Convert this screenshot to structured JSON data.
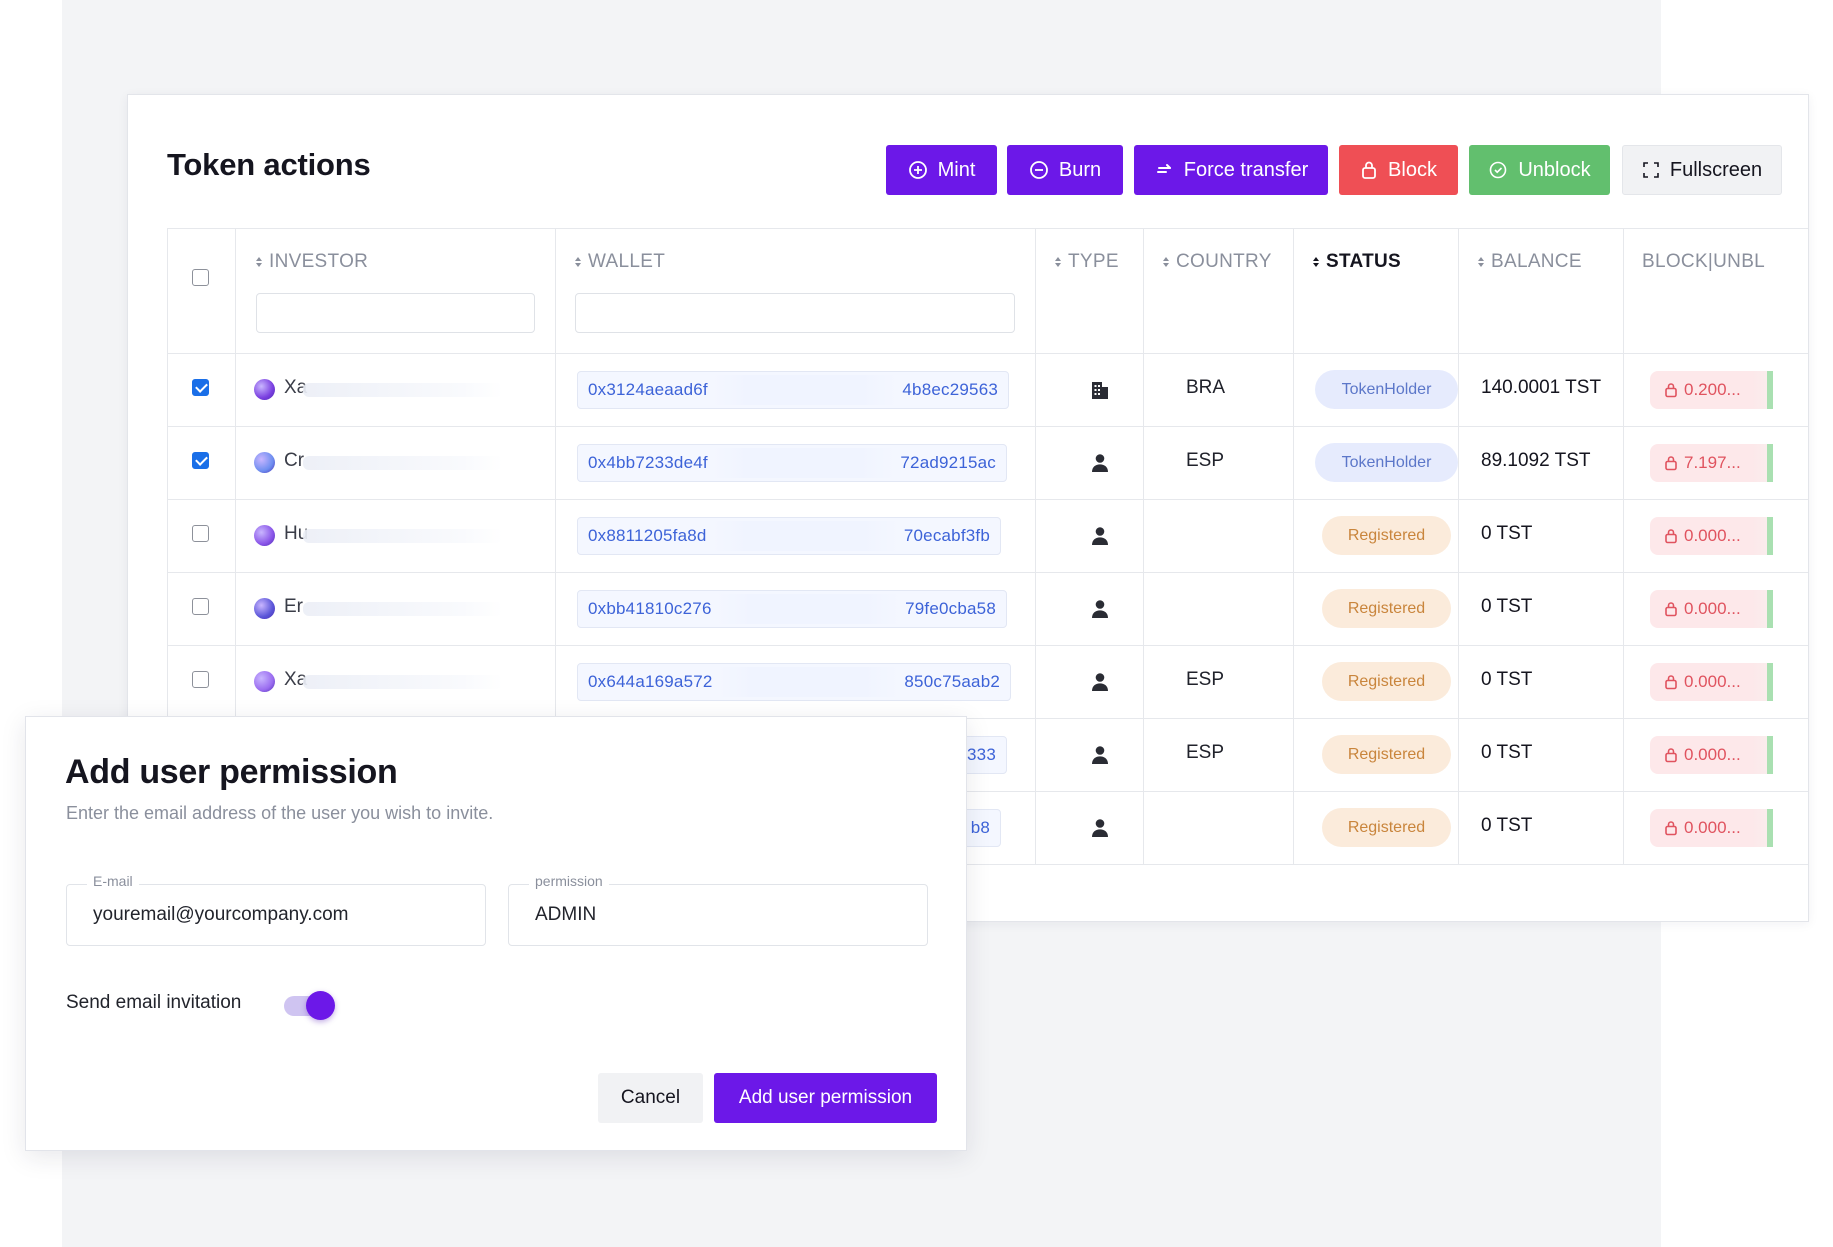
{
  "token_actions": {
    "title": "Token actions",
    "buttons": {
      "mint": "Mint",
      "burn": "Burn",
      "force_transfer": "Force transfer",
      "block": "Block",
      "unblock": "Unblock",
      "fullscreen": "Fullscreen"
    },
    "colors": {
      "purple": "#6c18e8",
      "red": "#ef4f55",
      "green": "#62bf6e"
    }
  },
  "table": {
    "columns": [
      "INVESTOR",
      "WALLET",
      "TYPE",
      "COUNTRY",
      "STATUS",
      "BALANCE",
      "BLOCK|UNBL"
    ],
    "active_column": "STATUS",
    "rows": [
      {
        "checked": true,
        "avatar_color": "#7a3fe0",
        "investor": "Xa",
        "wallet_start": "0x3124aeaad6f",
        "wallet_end": "4b8ec29563",
        "type": "company-icon",
        "country": "BRA",
        "status": "TokenHolder",
        "balance": "140.0001 TST",
        "block": "0.200..."
      },
      {
        "checked": true,
        "avatar_color": "#6e8ef0",
        "investor": "Cr",
        "wallet_start": "0x4bb7233de4f",
        "wallet_end": "72ad9215ac",
        "type": "person-icon",
        "country": "ESP",
        "status": "TokenHolder",
        "balance": "89.1092 TST",
        "block": "7.197..."
      },
      {
        "checked": false,
        "avatar_color": "#8a55e8",
        "investor": "Hu",
        "wallet_start": "0x8811205fa8d",
        "wallet_end": "70ecabf3fb",
        "type": "person-icon",
        "country": "",
        "status": "Registered",
        "balance": "0 TST",
        "block": "0.000..."
      },
      {
        "checked": false,
        "avatar_color": "#5a55d8",
        "investor": "Er",
        "wallet_start": "0xbb41810c276",
        "wallet_end": "79fe0cba58",
        "type": "person-icon",
        "country": "",
        "status": "Registered",
        "balance": "0 TST",
        "block": "0.000..."
      },
      {
        "checked": false,
        "avatar_color": "#9a6cf0",
        "investor": "Xa",
        "wallet_start": "0x644a169a572",
        "wallet_end": "850c75aab2",
        "type": "person-icon",
        "country": "ESP",
        "status": "Registered",
        "balance": "0 TST",
        "block": "0.000..."
      },
      {
        "checked": false,
        "avatar_color": "#7a3fe0",
        "investor": "",
        "wallet_start": "",
        "wallet_end": "333",
        "type": "person-icon",
        "country": "ESP",
        "status": "Registered",
        "balance": "0 TST",
        "block": "0.000..."
      },
      {
        "checked": false,
        "avatar_color": "#7a3fe0",
        "investor": "",
        "wallet_start": "",
        "wallet_end": "b8",
        "type": "person-icon",
        "country": "",
        "status": "Registered",
        "balance": "0 TST",
        "block": "0.000..."
      }
    ]
  },
  "modal": {
    "title": "Add user permission",
    "subtitle": "Enter the email address of the user you wish to invite.",
    "email": {
      "label": "E-mail",
      "value": "youremail@yourcompany.com"
    },
    "permission": {
      "label": "permission",
      "value": "ADMIN"
    },
    "toggle_label": "Send email invitation",
    "toggle_on": true,
    "cancel_label": "Cancel",
    "submit_label": "Add user permission"
  }
}
